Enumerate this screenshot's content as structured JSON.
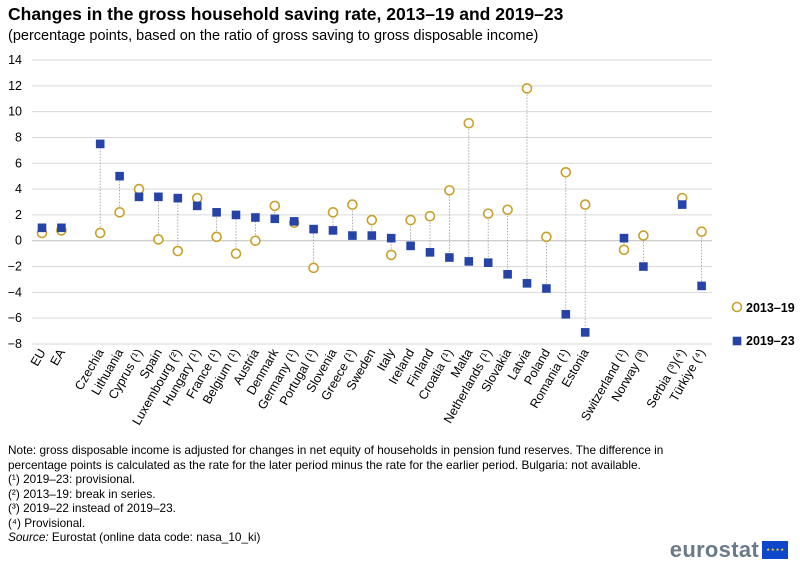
{
  "title": "Changes in the gross household saving rate, 2013–19 and 2019–23",
  "subtitle": "(percentage points, based on the ratio of gross saving to gross disposable income)",
  "chart_data": {
    "type": "scatter",
    "ylim": [
      -8,
      14
    ],
    "yticks": [
      -8,
      -6,
      -4,
      -2,
      0,
      2,
      4,
      6,
      8,
      10,
      12,
      14
    ],
    "grid": true,
    "legend_position": "right",
    "categories": [
      "EU",
      "EA",
      "",
      "Czechia",
      "Lithuania",
      "Cyprus (¹)",
      "Spain",
      "Luxembourg (²)",
      "Hungary (¹)",
      "France (¹)",
      "Belgium (¹)",
      "Austria",
      "Denmark",
      "Germany (¹)",
      "Portugal (¹)",
      "Slovenia",
      "Greece (¹)",
      "Sweden",
      "Italy",
      "Ireland",
      "Finland",
      "Croatia (¹)",
      "Malta",
      "Netherlands (¹)",
      "Slovakia",
      "Latvia",
      "Poland",
      "Romania (¹)",
      "Estonia",
      "",
      "Switzerland (¹)",
      "Norway (³)",
      "",
      "Serbia (³)(⁴)",
      "Türkiye (⁴)"
    ],
    "series": [
      {
        "name": "2013–19",
        "marker": "circle",
        "color": "#c8a02b",
        "values": [
          0.6,
          0.8,
          null,
          0.6,
          2.2,
          4.0,
          0.1,
          -0.8,
          3.3,
          0.3,
          -1.0,
          0.0,
          2.7,
          1.4,
          -2.1,
          2.2,
          2.8,
          1.6,
          -1.1,
          1.6,
          1.9,
          3.9,
          9.1,
          2.1,
          2.4,
          11.8,
          0.3,
          5.3,
          2.8,
          null,
          -0.7,
          0.4,
          null,
          3.3,
          0.7
        ]
      },
      {
        "name": "2019–23",
        "marker": "square",
        "color": "#2644a7",
        "values": [
          1.0,
          1.0,
          null,
          7.5,
          5.0,
          3.4,
          3.4,
          3.3,
          2.7,
          2.2,
          2.0,
          1.8,
          1.7,
          1.5,
          0.9,
          0.8,
          0.4,
          0.4,
          0.2,
          -0.4,
          -0.9,
          -1.3,
          -1.6,
          -1.7,
          -2.6,
          -3.3,
          -3.7,
          -5.7,
          -7.1,
          null,
          0.2,
          -2.0,
          null,
          2.8,
          -3.5
        ]
      }
    ]
  },
  "notes": {
    "main": "Note: gross disposable income is adjusted for changes in net equity of households in pension fund reserves. The difference in percentage points is calculated as the rate for the later period minus the rate for the earlier period. Bulgaria: not available.",
    "fn1": "(¹) 2019–23: provisional.",
    "fn2": "(²) 2013–19: break in series.",
    "fn3": "(³) 2019–22 instead of 2019–23.",
    "fn4": "(⁴) Provisional.",
    "source_label": "Source:",
    "source_text": " Eurostat (online data code: nasa_10_ki)"
  },
  "logo": {
    "text": "eurostat"
  }
}
